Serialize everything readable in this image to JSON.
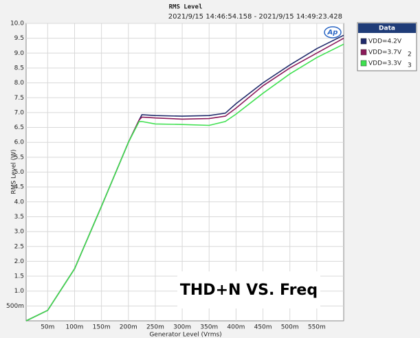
{
  "chart_data": {
    "type": "line",
    "title": "RMS Level",
    "subtitle": "2021/9/15 14:46:54.158 - 2021/9/15 14:49:23.428",
    "x_label": "Generator Level (Vrms)",
    "y_label": "RMS Level (W)",
    "annotation": "THD+N VS. Freq",
    "logo": "Ap",
    "legend_title": "Data",
    "legend": "top-right-outside",
    "grid": true,
    "x": [
      0.01,
      0.05,
      0.1,
      0.15,
      0.2,
      0.22,
      0.225,
      0.25,
      0.3,
      0.35,
      0.38,
      0.4,
      0.45,
      0.5,
      0.55,
      0.6
    ],
    "series": [
      {
        "name": "VDD=4.2V",
        "color": "#1f2a6b",
        "values": [
          0.0,
          0.35,
          1.75,
          3.85,
          6.0,
          6.75,
          6.93,
          6.9,
          6.88,
          6.9,
          6.98,
          7.3,
          8.0,
          8.6,
          9.15,
          9.6
        ]
      },
      {
        "name": "VDD=3.7V",
        "trace": "2",
        "color": "#8b1a5a",
        "values": [
          0.0,
          0.35,
          1.75,
          3.85,
          6.0,
          6.75,
          6.85,
          6.82,
          6.78,
          6.8,
          6.88,
          7.15,
          7.9,
          8.5,
          9.0,
          9.5
        ]
      },
      {
        "name": "VDD=3.3V",
        "trace": "3",
        "color": "#3ee04f",
        "values": [
          0.0,
          0.35,
          1.75,
          3.85,
          6.0,
          6.7,
          6.7,
          6.62,
          6.6,
          6.57,
          6.7,
          6.95,
          7.65,
          8.3,
          8.85,
          9.3
        ]
      }
    ],
    "xlim": [
      0.01,
      0.6
    ],
    "ylim": [
      0,
      10
    ],
    "xticks": [
      {
        "value": 0.05,
        "label": "50m"
      },
      {
        "value": 0.1,
        "label": "100m"
      },
      {
        "value": 0.15,
        "label": "150m"
      },
      {
        "value": 0.2,
        "label": "200m"
      },
      {
        "value": 0.25,
        "label": "250m"
      },
      {
        "value": 0.3,
        "label": "300m"
      },
      {
        "value": 0.35,
        "label": "350m"
      },
      {
        "value": 0.4,
        "label": "400m"
      },
      {
        "value": 0.45,
        "label": "450m"
      },
      {
        "value": 0.5,
        "label": "500m"
      },
      {
        "value": 0.55,
        "label": "550m"
      }
    ],
    "yticks": [
      {
        "value": 0.5,
        "label": "500m"
      },
      {
        "value": 1,
        "label": "1.0"
      },
      1.5,
      {
        "value": 2,
        "label": "2.0"
      },
      2.5,
      {
        "value": 3,
        "label": "3.0"
      },
      3.5,
      {
        "value": 4,
        "label": "4.0"
      },
      4.5,
      {
        "value": 5,
        "label": "5.0"
      },
      5.5,
      {
        "value": 6,
        "label": "6.0"
      },
      6.5,
      {
        "value": 7,
        "label": "7.0"
      },
      7.5,
      {
        "value": 8,
        "label": "8.0"
      },
      8.5,
      {
        "value": 9,
        "label": "9.0"
      },
      9.5,
      {
        "value": 10,
        "label": "10.0"
      }
    ]
  }
}
